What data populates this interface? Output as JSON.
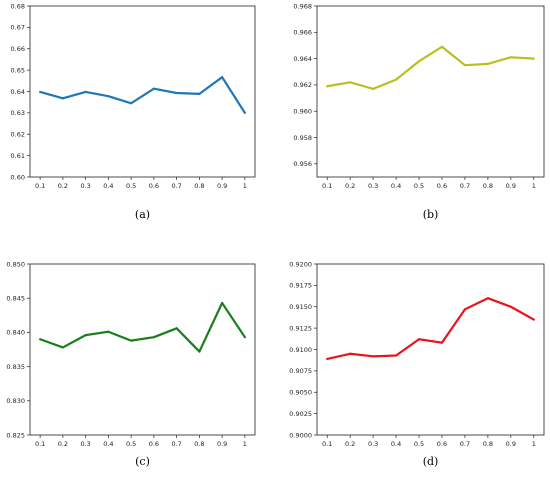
{
  "chart_data": [
    {
      "type": "line",
      "caption": "(a)",
      "x": [
        "0.1",
        "0.2",
        "0.3",
        "0.4",
        "0.5",
        "0.6",
        "0.7",
        "0.8",
        "0.9",
        "1"
      ],
      "series": [
        {
          "values": [
            0.6398,
            0.6368,
            0.6398,
            0.6378,
            0.6345,
            0.6413,
            0.6393,
            0.6389,
            0.6467,
            0.63
          ],
          "color": "#1f77b4"
        }
      ],
      "ylim": [
        0.6,
        0.68
      ],
      "yticks": [
        "0.60",
        "0.61",
        "0.62",
        "0.63",
        "0.64",
        "0.65",
        "0.66",
        "0.67",
        "0.68"
      ],
      "grid": false
    },
    {
      "type": "line",
      "caption": "(b)",
      "x": [
        "0.1",
        "0.2",
        "0.3",
        "0.4",
        "0.5",
        "0.6",
        "0.7",
        "0.8",
        "0.9",
        "1"
      ],
      "series": [
        {
          "values": [
            0.9619,
            0.9622,
            0.9617,
            0.9624,
            0.9638,
            0.9649,
            0.9635,
            0.9636,
            0.9641,
            0.964
          ],
          "color": "#bcbd22"
        }
      ],
      "ylim": [
        0.955,
        0.968
      ],
      "yticks": [
        "0.956",
        "0.958",
        "0.960",
        "0.962",
        "0.964",
        "0.966",
        "0.968"
      ],
      "grid": false
    },
    {
      "type": "line",
      "caption": "(c)",
      "x": [
        "0.1",
        "0.2",
        "0.3",
        "0.4",
        "0.5",
        "0.6",
        "0.7",
        "0.8",
        "0.9",
        "1"
      ],
      "series": [
        {
          "values": [
            0.839,
            0.8378,
            0.8396,
            0.8401,
            0.8388,
            0.8393,
            0.8406,
            0.8372,
            0.8443,
            0.8393
          ],
          "color": "#1a7f1a"
        }
      ],
      "ylim": [
        0.825,
        0.85
      ],
      "yticks": [
        "0.825",
        "0.830",
        "0.835",
        "0.840",
        "0.845",
        "0.850"
      ],
      "grid": false
    },
    {
      "type": "line",
      "caption": "(d)",
      "x": [
        "0.1",
        "0.2",
        "0.3",
        "0.4",
        "0.5",
        "0.6",
        "0.7",
        "0.8",
        "0.9",
        "1"
      ],
      "series": [
        {
          "values": [
            0.9089,
            0.9095,
            0.9092,
            0.9093,
            0.9112,
            0.9108,
            0.9147,
            0.916,
            0.915,
            0.9135
          ],
          "color": "#e8141b"
        }
      ],
      "ylim": [
        0.9,
        0.92
      ],
      "yticks": [
        "0.9000",
        "0.9025",
        "0.9050",
        "0.9075",
        "0.9100",
        "0.9125",
        "0.9150",
        "0.9175",
        "0.9200"
      ],
      "grid": false
    }
  ]
}
